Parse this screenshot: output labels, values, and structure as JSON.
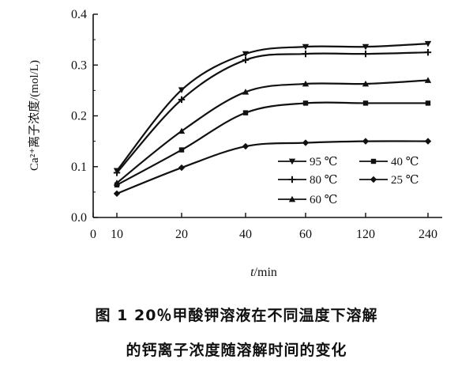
{
  "chart_data": {
    "type": "line",
    "categories": [
      "10",
      "20",
      "40",
      "60",
      "120",
      "240"
    ],
    "x_tick_labels": [
      "0",
      "10",
      "20",
      "40",
      "60",
      "120",
      "240"
    ],
    "y_tick_labels": [
      "0.0",
      "0.1",
      "0.2",
      "0.3",
      "0.4"
    ],
    "ylim": [
      0,
      0.4
    ],
    "ylabel": "Ca²⁺离子浓度/(mol/L)",
    "xlabel_italic": "t",
    "xlabel_rest": "/min",
    "legend_placement": "lower-right (inside)",
    "series": [
      {
        "name": "95 ℃",
        "marker": "triangle-down",
        "values": [
          0.092,
          0.251,
          0.322,
          0.336,
          0.336,
          0.342
        ]
      },
      {
        "name": "80 ℃",
        "marker": "plus",
        "values": [
          0.088,
          0.232,
          0.31,
          0.322,
          0.322,
          0.325
        ]
      },
      {
        "name": "60 ℃",
        "marker": "triangle-up",
        "values": [
          0.068,
          0.17,
          0.247,
          0.263,
          0.263,
          0.27
        ]
      },
      {
        "name": "40 ℃",
        "marker": "square",
        "values": [
          0.064,
          0.133,
          0.206,
          0.225,
          0.225,
          0.225
        ]
      },
      {
        "name": "25 ℃",
        "marker": "diamond",
        "values": [
          0.047,
          0.098,
          0.14,
          0.147,
          0.15,
          0.15
        ]
      }
    ]
  },
  "caption": {
    "line1": "图 1   20％甲酸钾溶液在不同温度下溶解",
    "line2": "的钙离子浓度随溶解时间的变化"
  }
}
